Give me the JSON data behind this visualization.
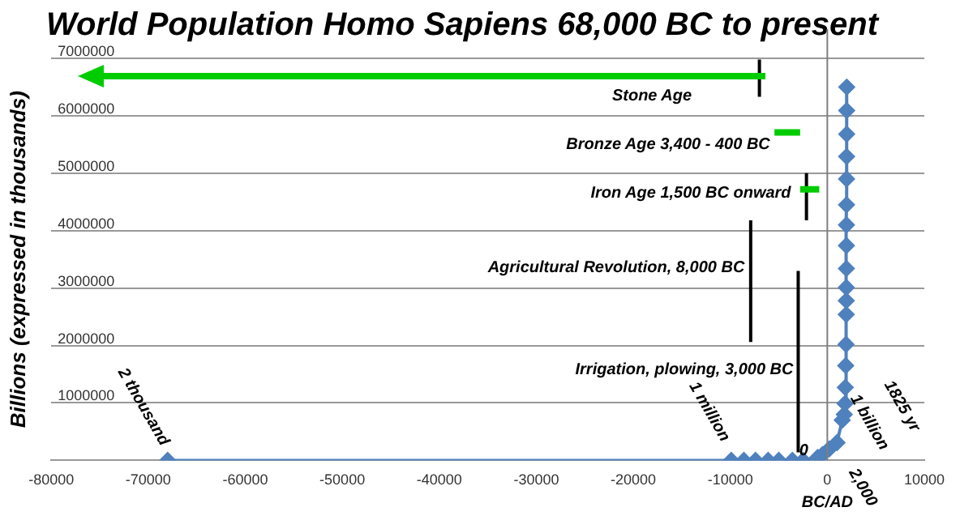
{
  "chart_data": {
    "type": "line",
    "title": "World Population Homo Sapiens 68,000 BC to present",
    "ylabel": "Billions (expressed in thousands)",
    "xlim": [
      -80000,
      10000
    ],
    "xticks": [
      -80000,
      -70000,
      -60000,
      -50000,
      -40000,
      -30000,
      -20000,
      -10000,
      0,
      10000
    ],
    "ylim": [
      0,
      7000000
    ],
    "yticks": [
      {
        "value": 0,
        "label": null
      },
      1000000,
      2000000,
      3000000,
      4000000,
      5000000,
      6000000,
      7000000
    ],
    "grid": "y",
    "marker": "diamond",
    "line_style": "solid",
    "legend": false,
    "ref_lines": [
      {
        "axis": "x",
        "value": 0,
        "label": "BC/AD",
        "color": "#7f7f7f"
      }
    ],
    "series": [
      {
        "color": "#4f81bd",
        "x": [
          -68000,
          -9900,
          -8600,
          -7400,
          -6100,
          -5000,
          -3600,
          -2500,
          -1000,
          -500,
          200,
          1000,
          1540,
          1750,
          1825,
          1850,
          1900,
          1927,
          1950,
          1955,
          1960,
          1965,
          1970,
          1975,
          1980,
          1985,
          1990,
          1995,
          2000,
          2005
        ],
        "values": [
          0,
          0,
          0,
          0,
          0,
          0,
          0,
          0,
          50000,
          100000,
          200000,
          310000,
          700000,
          800000,
          990000,
          1270000,
          1650000,
          2020000,
          2540000,
          2780000,
          3010000,
          3340000,
          3740000,
          4100000,
          4450000,
          4900000,
          5290000,
          5680000,
          6090000,
          6500000
        ]
      },
      {
        "color": "#00cc00",
        "marker": "none",
        "x": [
          -5450,
          -2800
        ],
        "values": [
          5710000,
          5710000
        ]
      },
      {
        "color": "#00cc00",
        "marker": "none",
        "x": [
          -2800,
          -830
        ],
        "values": [
          4720000,
          4720000
        ]
      },
      {
        "color": "#000000",
        "marker": "none",
        "x": [
          -7000,
          -7000
        ],
        "values": [
          6330000,
          6980000
        ]
      },
      {
        "color": "#000000",
        "marker": "none",
        "x": [
          -2150,
          -2150
        ],
        "values": [
          4180000,
          5000000
        ]
      },
      {
        "color": "#000000",
        "marker": "none",
        "x": [
          -7900,
          -7900
        ],
        "values": [
          2060000,
          4180000
        ]
      },
      {
        "color": "#000000",
        "marker": "none",
        "x": [
          -3000,
          -3000
        ],
        "values": [
          140000,
          3300000
        ]
      }
    ],
    "annotations": [
      "Stone Age",
      "Bronze Age 3,400 - 400 BC",
      "Iron Age 1,500 BC onward",
      "Agricultural Revolution, 8,000 BC",
      "Irrigation, plowing, 3,000 BC",
      {
        "text": "2 thousand",
        "x": -68000,
        "y": 0
      },
      {
        "text": "1 million",
        "x": -10000,
        "y": 0
      },
      {
        "text": "0",
        "x": -2600,
        "y": 0
      },
      {
        "text": "1 billion",
        "x": 1825,
        "y": 1000000
      },
      {
        "text": "1825 yr",
        "x": 1825,
        "y": 1000000
      },
      "2,000"
    ]
  }
}
